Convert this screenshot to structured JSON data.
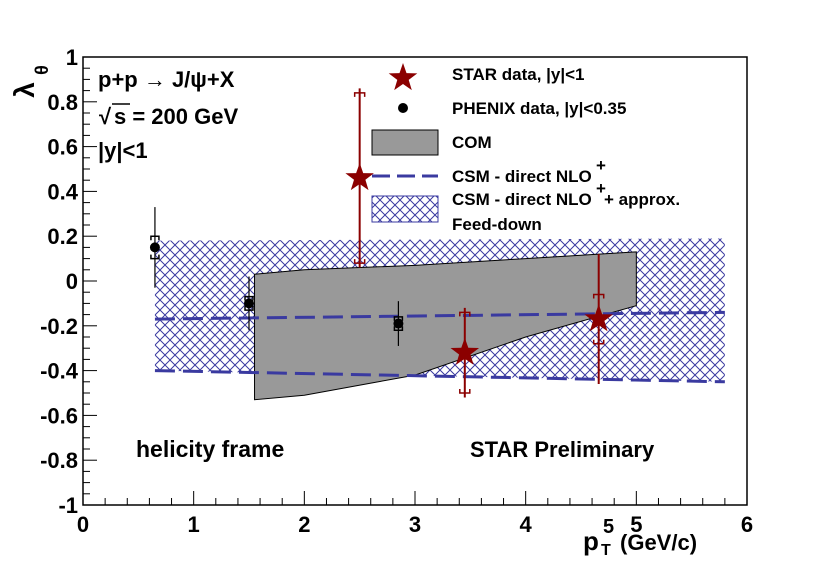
{
  "chart_data": {
    "type": "scatter",
    "title": "",
    "xlabel": "p",
    "xlabel_sub": "T",
    "xlabel_unit": "(GeV/c)",
    "ylabel": "λ",
    "ylabel_sub": "θ",
    "xlim": [
      0,
      6
    ],
    "ylim": [
      -1,
      1
    ],
    "x_ticks": [
      "0",
      "1",
      "2",
      "3",
      "4",
      "5",
      "6"
    ],
    "y_ticks": [
      "1",
      "0.8",
      "0.6",
      "0.4",
      "0.2",
      "0",
      "-0.2",
      "-0.4",
      "-0.6",
      "-0.8",
      "-1"
    ],
    "annotations": {
      "reaction": "p+p → J/ψ+X",
      "energy": "s = 200 GeV",
      "sqrt_sign": "√",
      "rapidity": "|y|<1",
      "frame": "helicity frame",
      "preliminary": "STAR Preliminary"
    },
    "legend": {
      "star": "STAR data, |y|<1",
      "phenix": "PHENIX data, |y|<0.35",
      "com": "COM",
      "csm_line": "CSM - direct NLO",
      "csm_line_sup": "+",
      "csm_band_1a": "CSM - direct NLO",
      "csm_band_1b": " + approx.",
      "csm_band_sup": "+",
      "csm_band_2": "Feed-down"
    },
    "series": [
      {
        "name": "STAR data, |y|<1",
        "color": "#8b0000",
        "marker": "star",
        "points": [
          {
            "x": 2.5,
            "y": 0.46,
            "stat": 0.4,
            "sys": 0.38
          },
          {
            "x": 3.45,
            "y": -0.32,
            "stat": 0.2,
            "sys": 0.18
          },
          {
            "x": 4.66,
            "y": -0.17,
            "stat": 0.29,
            "sys": 0.11
          }
        ]
      },
      {
        "name": "PHENIX data, |y|<0.35",
        "color": "#000000",
        "marker": "circle",
        "points": [
          {
            "x": 0.65,
            "y": 0.15,
            "stat": 0.18,
            "sys": 0.05
          },
          {
            "x": 1.5,
            "y": -0.1,
            "stat": 0.12,
            "sys": 0.03
          },
          {
            "x": 2.85,
            "y": -0.19,
            "stat": 0.1,
            "sys": 0.03
          }
        ]
      }
    ],
    "com_band": {
      "color": "#999999",
      "x": [
        1.55,
        2.0,
        3.0,
        4.0,
        5.0
      ],
      "upper": [
        0.03,
        0.05,
        0.07,
        0.1,
        0.13
      ],
      "lower": [
        -0.53,
        -0.51,
        -0.42,
        -0.25,
        -0.11
      ]
    },
    "csm_direct": {
      "color": "#3a3aa0",
      "x": [
        0.65,
        5.8
      ],
      "upper": [
        -0.17,
        -0.14
      ],
      "lower": [
        -0.4,
        -0.45
      ]
    },
    "csm_feeddown_band": {
      "color": "#3a3aa0",
      "x": [
        0.65,
        5.8
      ],
      "upper": [
        0.18,
        0.19
      ],
      "lower": [
        -0.4,
        -0.45
      ]
    }
  }
}
